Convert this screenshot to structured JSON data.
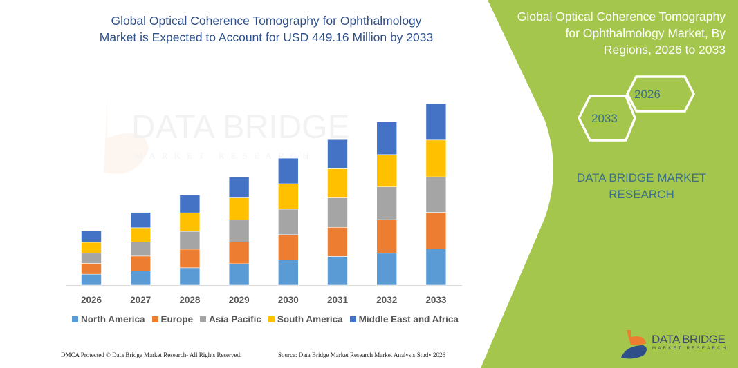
{
  "header": {
    "title_line1": "Global Optical Coherence Tomography for Ophthalmology",
    "title_line2": "Market is Expected to Account for USD 449.16 Million by 2033"
  },
  "side_panel": {
    "title_line1": "Global Optical Coherence Tomography",
    "title_line2": "for Ophthalmology Market, By",
    "title_line3": "Regions, 2026 to 2033",
    "hex_start_year": "2026",
    "hex_end_year": "2033",
    "brand_line1": "DATA BRIDGE MARKET",
    "brand_line2": "RESEARCH",
    "background_color": "#a5c64c"
  },
  "logo": {
    "name": "DATA BRIDGE",
    "tagline": "MARKET RESEARCH"
  },
  "footer": {
    "left": "DMCA Protected © Data Bridge Market Research- All Rights Reserved.",
    "right": "Source: Data Bridge Market Research  Market Analysis Study 2026"
  },
  "chart_data": {
    "type": "bar",
    "stacked": true,
    "title": "Global Optical Coherence Tomography for Ophthalmology Market is Expected to Account for USD 449.16 Million by 2033",
    "categories": [
      "2026",
      "2027",
      "2028",
      "2029",
      "2030",
      "2031",
      "2032",
      "2033"
    ],
    "series": [
      {
        "name": "North America",
        "color": "#5b9bd5",
        "values": [
          27,
          35,
          43,
          53,
          62,
          71,
          79,
          90
        ]
      },
      {
        "name": "Europe",
        "color": "#ed7d31",
        "values": [
          27,
          37,
          46,
          54,
          63,
          72,
          83,
          90
        ]
      },
      {
        "name": "Asia Pacific",
        "color": "#a5a5a5",
        "values": [
          25,
          35,
          44,
          54,
          63,
          73,
          81,
          88
        ]
      },
      {
        "name": "South America",
        "color": "#ffc000",
        "values": [
          27,
          35,
          46,
          55,
          63,
          72,
          80,
          91
        ]
      },
      {
        "name": "Middle East and Africa",
        "color": "#4472c4",
        "values": [
          28,
          38,
          44,
          52,
          63,
          72,
          81,
          90
        ]
      }
    ],
    "xlabel": "",
    "ylabel": "",
    "ylim": [
      0,
      449.16
    ],
    "grid": false,
    "y_axis_shown": false,
    "legend_position": "bottom"
  }
}
